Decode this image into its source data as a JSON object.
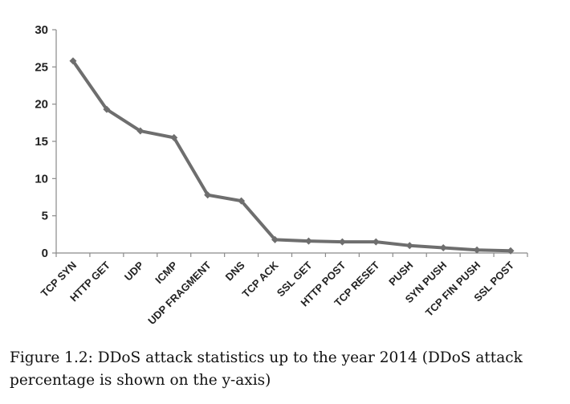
{
  "chart_data": {
    "type": "line",
    "title": "",
    "xlabel": "",
    "ylabel": "",
    "categories": [
      "TCP SYN",
      "HTTP GET",
      "UDP",
      "ICMP",
      "UDP FRAGMENT",
      "DNS",
      "TCP ACK",
      "SSL GET",
      "HTTP POST",
      "TCP RESET",
      "PUSH",
      "SYN PUSH",
      "TCP FIN PUSH",
      "SSL POST"
    ],
    "series": [
      {
        "name": "DDoS attack percentage",
        "values": [
          25.8,
          19.3,
          16.4,
          15.5,
          7.8,
          7.0,
          1.8,
          1.6,
          1.5,
          1.5,
          1.0,
          0.7,
          0.4,
          0.3
        ],
        "color": "#6e6e6e"
      }
    ],
    "ylim": [
      0,
      30
    ],
    "yticks": [
      0,
      5,
      10,
      15,
      20,
      25,
      30
    ],
    "grid": false,
    "legend": "none"
  },
  "caption": {
    "label": "Figure 1.2:",
    "text": "DDoS attack statistics up to the year 2014 (DDoS attack percentage is shown on the y-axis)"
  }
}
